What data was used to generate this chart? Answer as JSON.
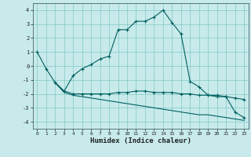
{
  "title": "",
  "xlabel": "Humidex (Indice chaleur)",
  "ylabel": "",
  "bg_color": "#c8eaea",
  "line_color": "#006060",
  "grid_color": "#80c8c8",
  "xlim": [
    -0.5,
    23.5
  ],
  "ylim": [
    -4.5,
    4.5
  ],
  "xticks": [
    0,
    1,
    2,
    3,
    4,
    5,
    6,
    7,
    8,
    9,
    10,
    11,
    12,
    13,
    14,
    15,
    16,
    17,
    18,
    19,
    20,
    21,
    22,
    23
  ],
  "yticks": [
    -4,
    -3,
    -2,
    -1,
    0,
    1,
    2,
    3,
    4
  ],
  "series1_x": [
    0,
    1,
    2,
    3,
    4,
    5,
    6,
    7,
    8,
    9,
    10,
    11,
    12,
    13,
    14,
    15,
    16,
    17,
    18,
    19,
    20,
    21,
    22,
    23
  ],
  "series1_y": [
    1.0,
    -0.2,
    -1.2,
    -1.8,
    -0.7,
    -0.2,
    0.1,
    0.5,
    0.7,
    2.6,
    2.6,
    3.2,
    3.2,
    3.5,
    4.0,
    3.1,
    2.3,
    -1.1,
    -1.5,
    -2.1,
    -2.2,
    -2.2,
    -3.3,
    -3.7
  ],
  "series2_x": [
    2,
    3,
    4,
    5,
    6,
    7,
    8,
    9,
    10,
    11,
    12,
    13,
    14,
    15,
    16,
    17,
    18,
    19,
    20,
    21,
    22,
    23
  ],
  "series2_y": [
    -1.2,
    -1.8,
    -2.0,
    -2.0,
    -2.0,
    -2.0,
    -2.0,
    -1.9,
    -1.9,
    -1.8,
    -1.8,
    -1.9,
    -1.9,
    -1.9,
    -2.0,
    -2.0,
    -2.1,
    -2.1,
    -2.1,
    -2.2,
    -2.3,
    -2.4
  ],
  "series3_x": [
    2,
    3,
    4,
    5,
    6,
    7,
    8,
    9,
    10,
    11,
    12,
    13,
    14,
    15,
    16,
    17,
    18,
    19,
    20,
    21,
    22,
    23
  ],
  "series3_y": [
    -1.2,
    -1.9,
    -2.1,
    -2.2,
    -2.3,
    -2.4,
    -2.5,
    -2.6,
    -2.7,
    -2.8,
    -2.9,
    -3.0,
    -3.1,
    -3.2,
    -3.3,
    -3.4,
    -3.5,
    -3.5,
    -3.6,
    -3.7,
    -3.8,
    -3.9
  ]
}
